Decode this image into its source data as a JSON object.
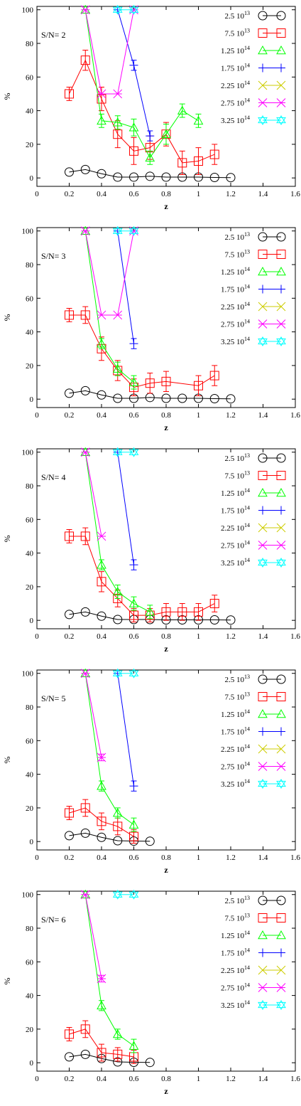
{
  "axes": {
    "xlabel": "z",
    "ylabel": "%"
  },
  "legend_entries": [
    {
      "mantissa": "2.5",
      "exp": "13",
      "color": "#000000",
      "marker": "circle"
    },
    {
      "mantissa": "7.5",
      "exp": "13",
      "color": "#ff0000",
      "marker": "square"
    },
    {
      "mantissa": "1.25",
      "exp": "14",
      "color": "#00ff00",
      "marker": "triangle"
    },
    {
      "mantissa": "1.75",
      "exp": "14",
      "color": "#0000ff",
      "marker": "plus"
    },
    {
      "mantissa": "2.25",
      "exp": "14",
      "color": "#cccc00",
      "marker": "cross"
    },
    {
      "mantissa": "2.75",
      "exp": "14",
      "color": "#ff00ff",
      "marker": "asterisk"
    },
    {
      "mantissa": "3.25",
      "exp": "14",
      "color": "#00ffff",
      "marker": "star"
    }
  ],
  "chart_data": [
    {
      "type": "line",
      "annotation": "S/N= 2",
      "xlabel": "z",
      "ylabel": "%",
      "xlim": [
        0,
        1.6
      ],
      "ylim": [
        -5,
        102
      ],
      "xticks": [
        "0",
        "0.2",
        "0.4",
        "0.6",
        "0.8",
        "1",
        "1.2",
        "1.4",
        "1.6"
      ],
      "yticks": [
        "0",
        "20",
        "40",
        "60",
        "80",
        "100"
      ],
      "series": [
        {
          "index": 0,
          "x": [
            0.2,
            0.3,
            0.4,
            0.5,
            0.6,
            0.7,
            0.8,
            0.9,
            1.0,
            1.1,
            1.2
          ],
          "y": [
            3.5,
            5,
            2.5,
            0.5,
            0.5,
            1,
            0.5,
            0.5,
            0.5,
            0.3,
            0.2
          ],
          "err": [
            0,
            0,
            0,
            0,
            0,
            0,
            0,
            0,
            0,
            0,
            0
          ]
        },
        {
          "index": 1,
          "x": [
            0.2,
            0.3,
            0.4,
            0.5,
            0.6,
            0.7,
            0.8,
            0.9,
            1.0,
            1.1
          ],
          "y": [
            50,
            70,
            47,
            26,
            16,
            18,
            26,
            9,
            10,
            14
          ],
          "err": [
            4,
            6,
            7,
            8,
            8,
            7,
            7,
            7,
            8,
            6
          ]
        },
        {
          "index": 2,
          "x": [
            0.3,
            0.4,
            0.5,
            0.6,
            0.7,
            0.8,
            0.9,
            1.0
          ],
          "y": [
            100,
            34,
            33,
            30,
            12,
            26,
            40,
            34
          ],
          "err": [
            0,
            4,
            4,
            5,
            4,
            6,
            4,
            4
          ]
        },
        {
          "index": 3,
          "x": [
            0.5,
            0.6,
            0.7
          ],
          "y": [
            100,
            67,
            25
          ],
          "err": [
            0,
            3,
            3
          ]
        },
        {
          "index": 5,
          "x": [
            0.3,
            0.4,
            0.5,
            0.6
          ],
          "y": [
            100,
            50,
            50,
            100
          ],
          "err": [
            0,
            0,
            0,
            0
          ]
        },
        {
          "index": 6,
          "x": [
            0.5,
            0.6
          ],
          "y": [
            100,
            100
          ],
          "err": [
            0,
            0
          ]
        }
      ]
    },
    {
      "type": "line",
      "annotation": "S/N= 3",
      "xlabel": "z",
      "ylabel": "%",
      "xlim": [
        0,
        1.6
      ],
      "ylim": [
        -5,
        102
      ],
      "xticks": [
        "0",
        "0.2",
        "0.4",
        "0.6",
        "0.8",
        "1",
        "1.2",
        "1.4",
        "1.6"
      ],
      "yticks": [
        "0",
        "20",
        "40",
        "60",
        "80",
        "100"
      ],
      "series": [
        {
          "index": 0,
          "x": [
            0.2,
            0.3,
            0.4,
            0.5,
            0.6,
            0.7,
            0.8,
            0.9,
            1.0,
            1.1,
            1.2
          ],
          "y": [
            3.5,
            5,
            2.5,
            0.5,
            0.5,
            1,
            0.5,
            0.5,
            0.5,
            0.3,
            0.2
          ],
          "err": [
            0,
            0,
            0,
            0,
            0,
            0,
            0,
            0,
            0,
            0,
            0
          ]
        },
        {
          "index": 1,
          "x": [
            0.2,
            0.3,
            0.4,
            0.5,
            0.6,
            0.7,
            0.8,
            0.9,
            1.0,
            1.1
          ],
          "y": [
            50,
            50,
            30,
            17,
            7,
            9.5,
            10.5,
            null,
            8,
            14
          ],
          "err": [
            4,
            5,
            7,
            6,
            5,
            6,
            6,
            0,
            6,
            6
          ]
        },
        {
          "index": 2,
          "x": [
            0.3,
            0.4,
            0.5,
            0.6
          ],
          "y": [
            100,
            33,
            18,
            10
          ],
          "err": [
            0,
            3,
            4,
            4
          ]
        },
        {
          "index": 3,
          "x": [
            0.5,
            0.6
          ],
          "y": [
            100,
            33
          ],
          "err": [
            0,
            3
          ]
        },
        {
          "index": 5,
          "x": [
            0.3,
            0.4,
            0.5,
            0.6
          ],
          "y": [
            100,
            50,
            50,
            100
          ],
          "err": [
            0,
            0,
            0,
            0
          ]
        },
        {
          "index": 6,
          "x": [
            0.5,
            0.6
          ],
          "y": [
            100,
            100
          ],
          "err": [
            0,
            0
          ]
        }
      ]
    },
    {
      "type": "line",
      "annotation": "S/N= 4",
      "xlabel": "z",
      "ylabel": "%",
      "xlim": [
        0,
        1.6
      ],
      "ylim": [
        -5,
        102
      ],
      "xticks": [
        "0",
        "0.2",
        "0.4",
        "0.6",
        "0.8",
        "1",
        "1.2",
        "1.4",
        "1.6"
      ],
      "yticks": [
        "0",
        "20",
        "40",
        "60",
        "80",
        "100"
      ],
      "series": [
        {
          "index": 0,
          "x": [
            0.2,
            0.3,
            0.4,
            0.5,
            0.6,
            0.7,
            0.8,
            0.9,
            1.0,
            1.1,
            1.2
          ],
          "y": [
            3.5,
            5,
            2.5,
            0.5,
            0.5,
            0.5,
            0.3,
            0.3,
            0.3,
            0.3,
            0.2
          ],
          "err": [
            0,
            0,
            0,
            0,
            0,
            0,
            0,
            0,
            0,
            0,
            0
          ]
        },
        {
          "index": 1,
          "x": [
            0.2,
            0.3,
            0.4,
            0.5,
            0.6,
            0.7,
            0.8,
            0.9,
            1.0,
            1.1
          ],
          "y": [
            50,
            50,
            23,
            13,
            3,
            3,
            5,
            5,
            5,
            10
          ],
          "err": [
            4,
            5,
            6,
            5,
            4,
            4,
            5,
            5,
            5,
            5
          ]
        },
        {
          "index": 2,
          "x": [
            0.3,
            0.4,
            0.5,
            0.6,
            0.7
          ],
          "y": [
            100,
            33,
            17,
            10,
            5
          ],
          "err": [
            0,
            3,
            4,
            4,
            4
          ]
        },
        {
          "index": 3,
          "x": [
            0.5,
            0.6
          ],
          "y": [
            100,
            33
          ],
          "err": [
            0,
            3
          ]
        },
        {
          "index": 5,
          "x": [
            0.3,
            0.4
          ],
          "y": [
            100,
            50
          ],
          "err": [
            0,
            0
          ]
        },
        {
          "index": 6,
          "x": [
            0.5,
            0.6
          ],
          "y": [
            100,
            100
          ],
          "err": [
            0,
            0
          ]
        }
      ]
    },
    {
      "type": "line",
      "annotation": "S/N= 5",
      "xlabel": "z",
      "ylabel": "%",
      "xlim": [
        0,
        1.6
      ],
      "ylim": [
        -5,
        102
      ],
      "xticks": [
        "0",
        "0.2",
        "0.4",
        "0.6",
        "0.8",
        "1",
        "1.2",
        "1.4",
        "1.6"
      ],
      "yticks": [
        "0",
        "20",
        "40",
        "60",
        "80",
        "100"
      ],
      "series": [
        {
          "index": 0,
          "x": [
            0.2,
            0.3,
            0.4,
            0.5,
            0.6,
            0.7
          ],
          "y": [
            3.5,
            5,
            2.5,
            0.5,
            0.3,
            0.2
          ],
          "err": [
            0,
            0,
            0,
            0,
            0,
            0
          ]
        },
        {
          "index": 1,
          "x": [
            0.2,
            0.3,
            0.4,
            0.5,
            0.6
          ],
          "y": [
            17,
            20,
            12,
            9,
            3
          ],
          "err": [
            4,
            5,
            5,
            5,
            4
          ]
        },
        {
          "index": 2,
          "x": [
            0.3,
            0.4,
            0.5,
            0.6
          ],
          "y": [
            100,
            33,
            17,
            10
          ],
          "err": [
            0,
            3,
            3,
            4
          ]
        },
        {
          "index": 3,
          "x": [
            0.5,
            0.6
          ],
          "y": [
            100,
            33
          ],
          "err": [
            0,
            3
          ]
        },
        {
          "index": 5,
          "x": [
            0.3,
            0.4
          ],
          "y": [
            100,
            50
          ],
          "err": [
            0,
            2
          ]
        },
        {
          "index": 6,
          "x": [
            0.5,
            0.6
          ],
          "y": [
            100,
            100
          ],
          "err": [
            0,
            0
          ]
        }
      ]
    },
    {
      "type": "line",
      "annotation": "S/N= 6",
      "xlabel": "z",
      "ylabel": "%",
      "xlim": [
        0,
        1.6
      ],
      "ylim": [
        -5,
        102
      ],
      "xticks": [
        "0",
        "0.2",
        "0.4",
        "0.6",
        "0.8",
        "1",
        "1.2",
        "1.4",
        "1.6"
      ],
      "yticks": [
        "0",
        "20",
        "40",
        "60",
        "80",
        "100"
      ],
      "series": [
        {
          "index": 0,
          "x": [
            0.2,
            0.3,
            0.4,
            0.5,
            0.6,
            0.7
          ],
          "y": [
            3.5,
            5,
            2.5,
            0.5,
            0.3,
            0.2
          ],
          "err": [
            0,
            0,
            0,
            0,
            0,
            0
          ]
        },
        {
          "index": 1,
          "x": [
            0.2,
            0.3,
            0.4,
            0.5,
            0.6
          ],
          "y": [
            17,
            20,
            6,
            5,
            3.5
          ],
          "err": [
            4,
            5,
            5,
            4,
            4
          ]
        },
        {
          "index": 2,
          "x": [
            0.3,
            0.4,
            0.5,
            0.6
          ],
          "y": [
            100,
            34,
            17,
            10
          ],
          "err": [
            0,
            3,
            3,
            4
          ]
        },
        {
          "index": 5,
          "x": [
            0.3,
            0.4
          ],
          "y": [
            100,
            50
          ],
          "err": [
            0,
            2
          ]
        },
        {
          "index": 6,
          "x": [
            0.5,
            0.6
          ],
          "y": [
            100,
            100
          ],
          "err": [
            0,
            0
          ]
        }
      ]
    }
  ]
}
